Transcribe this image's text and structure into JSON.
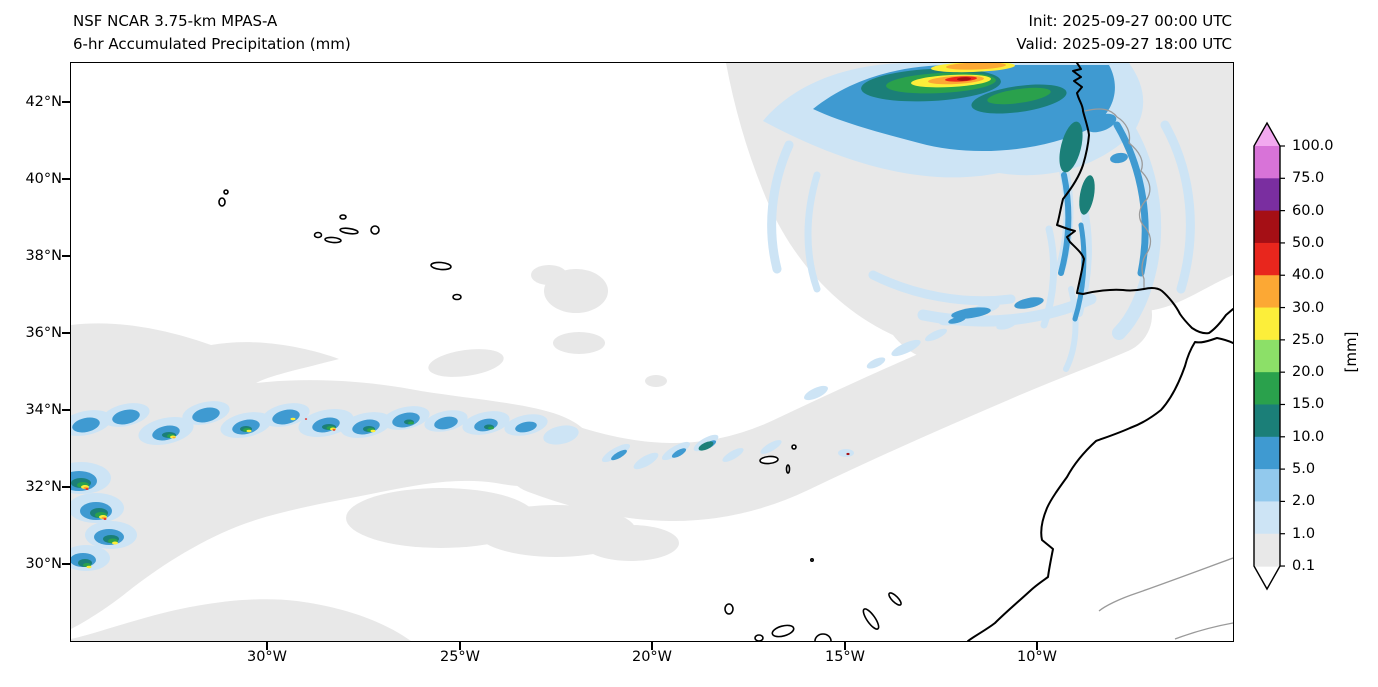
{
  "header": {
    "title_line1": "NSF NCAR 3.75-km MPAS-A",
    "title_line2": "6-hr Accumulated Precipitation (mm)",
    "init": "Init: 2025-09-27 00:00 UTC",
    "valid": "Valid: 2025-09-27 18:00 UTC"
  },
  "axes": {
    "y_tick_labels": [
      "42°N",
      "40°N",
      "38°N",
      "36°N",
      "34°N",
      "32°N",
      "30°N"
    ],
    "x_tick_labels": [
      "30°W",
      "25°W",
      "20°W",
      "15°W",
      "10°W"
    ]
  },
  "colorbar": {
    "unit": "[mm]",
    "tick_labels_top_to_bottom": [
      "100.0",
      "75.0",
      "60.0",
      "50.0",
      "40.0",
      "30.0",
      "25.0",
      "20.0",
      "15.0",
      "10.0",
      "5.0",
      "2.0",
      "1.0",
      "0.1"
    ],
    "segment_colors_top_to_bottom": [
      "#d873d8",
      "#7a2ea0",
      "#a50f15",
      "#e8261d",
      "#fca834",
      "#fcee3a",
      "#8ce068",
      "#2aa14c",
      "#1b7f78",
      "#3f9ad1",
      "#92c9ed",
      "#cde4f5",
      "#e8e8e8"
    ],
    "over_arrow_color": "#f2a9ef",
    "under_arrow_color": "#ffffff",
    "outline_color": "#000000"
  }
}
